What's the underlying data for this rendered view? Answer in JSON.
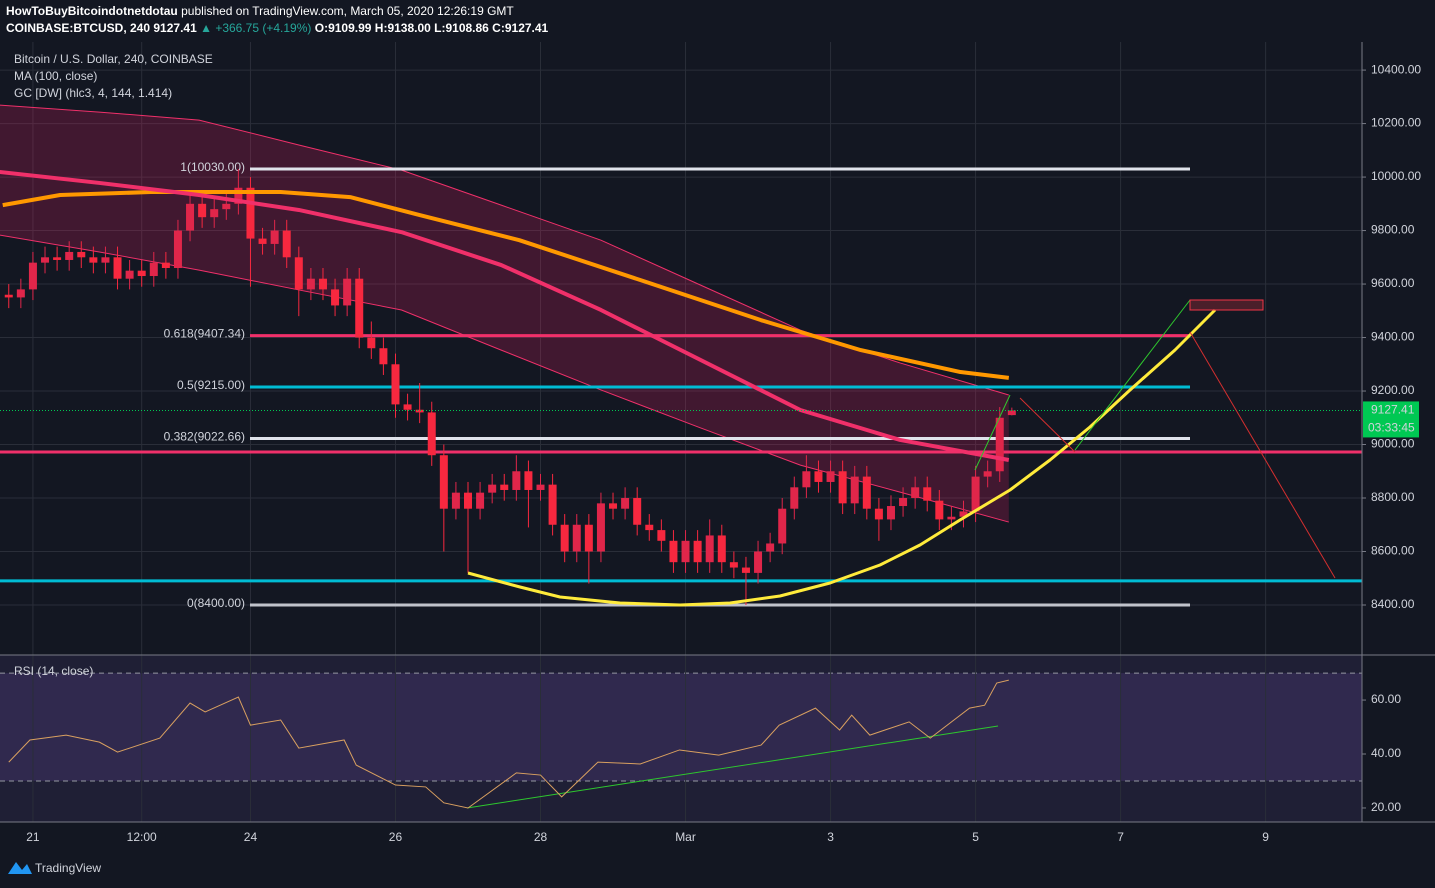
{
  "header": {
    "author": "HowToBuyBitcoindotnetdotau",
    "published": "published on TradingView.com, March 05, 2020 12:26:19 GMT",
    "symbol": "COINBASE:BTCUSD, 240",
    "last": "9127.41",
    "change": "▲ +366.75 (+4.19%)",
    "ohlc": "O:9109.99 H:9138.00 L:9108.86 C:9127.41"
  },
  "footer": {
    "brand": "TradingView"
  },
  "chart_data": [
    {
      "type": "candlestick",
      "title": "Bitcoin / U.S. Dollar, 240, COINBASE",
      "up_color": "#e0264a",
      "down_color": "#f7283f",
      "xlim": [
        -10.9,
        439.9
      ],
      "ylim": [
        8213,
        10505
      ],
      "yticks": [
        {
          "value": 8400,
          "label": "8400.00"
        },
        {
          "value": 8600,
          "label": "8600.00"
        },
        {
          "value": 8800,
          "label": "8800.00"
        },
        {
          "value": 9000,
          "label": "9000.00"
        },
        {
          "value": 9200,
          "label": "9200.00"
        },
        {
          "value": 9400,
          "label": "9400.00"
        },
        {
          "value": 9600,
          "label": "9600.00"
        },
        {
          "value": 9800,
          "label": "9800.00"
        },
        {
          "value": 10000,
          "label": "10000.00"
        },
        {
          "value": 10200,
          "label": "10200.00"
        },
        {
          "value": 10400,
          "label": "10400.00"
        }
      ],
      "x": [
        -8,
        -4,
        0,
        4,
        8,
        12,
        16,
        20,
        24,
        28,
        32,
        36,
        40,
        44,
        48,
        52,
        56,
        60,
        64,
        68,
        72,
        76,
        80,
        84,
        88,
        92,
        96,
        100,
        104,
        108,
        112,
        116,
        120,
        124,
        128,
        132,
        136,
        140,
        144,
        148,
        152,
        156,
        160,
        164,
        168,
        172,
        176,
        180,
        184,
        188,
        192,
        196,
        200,
        204,
        208,
        212,
        216,
        220,
        224,
        228,
        232,
        236,
        240,
        244,
        248,
        252,
        256,
        260,
        264,
        268,
        272,
        276,
        280,
        284,
        288,
        292,
        296,
        300,
        304,
        308,
        312,
        316,
        320,
        324
      ],
      "open": [
        9560,
        9550,
        9580,
        9680,
        9700,
        9690,
        9720,
        9700,
        9680,
        9700,
        9620,
        9650,
        9630,
        9680,
        9660,
        9800,
        9900,
        9850,
        9880,
        9900,
        9960,
        9770,
        9750,
        9800,
        9700,
        9580,
        9620,
        9580,
        9520,
        9620,
        9400,
        9360,
        9300,
        9150,
        9130,
        9120,
        8960,
        8760,
        8820,
        8760,
        8820,
        8850,
        8830,
        8900,
        8830,
        8850,
        8700,
        8600,
        8700,
        8600,
        8780,
        8760,
        8800,
        8700,
        8680,
        8640,
        8560,
        8640,
        8560,
        8660,
        8560,
        8540,
        8520,
        8600,
        8630,
        8760,
        8840,
        8900,
        8860,
        8900,
        8780,
        8880,
        8760,
        8720,
        8770,
        8800,
        8840,
        8790,
        8720,
        8730,
        8750,
        8880,
        8900,
        9109.99
      ],
      "high": [
        9600,
        9620,
        9720,
        9740,
        9740,
        9760,
        9760,
        9740,
        9740,
        9740,
        9690,
        9690,
        9720,
        9720,
        9840,
        9940,
        9940,
        9920,
        9940,
        10030,
        10000,
        9810,
        9840,
        9840,
        9740,
        9660,
        9660,
        9620,
        9660,
        9660,
        9460,
        9400,
        9340,
        9190,
        9230,
        9160,
        9000,
        8860,
        8860,
        8860,
        8890,
        8890,
        8960,
        8940,
        8890,
        8890,
        8740,
        8740,
        8740,
        8820,
        8820,
        8840,
        8840,
        8740,
        8720,
        8680,
        8680,
        8680,
        8720,
        8700,
        8600,
        8580,
        8640,
        8670,
        8800,
        8880,
        8960,
        8940,
        8940,
        8940,
        8920,
        8920,
        8800,
        8810,
        8840,
        8880,
        8880,
        8830,
        8770,
        8790,
        8920,
        8940,
        9140,
        9138
      ],
      "low": [
        9510,
        9510,
        9540,
        9640,
        9650,
        9650,
        9660,
        9640,
        9640,
        9580,
        9580,
        9590,
        9590,
        9620,
        9620,
        9760,
        9810,
        9810,
        9840,
        9860,
        9590,
        9710,
        9710,
        9660,
        9480,
        9540,
        9540,
        9480,
        9480,
        9360,
        9320,
        9260,
        9100,
        9090,
        9080,
        8920,
        8600,
        8720,
        8520,
        8720,
        8780,
        8790,
        8790,
        8690,
        8790,
        8660,
        8560,
        8560,
        8480,
        8560,
        8720,
        8720,
        8660,
        8640,
        8600,
        8520,
        8520,
        8520,
        8520,
        8520,
        8500,
        8400,
        8480,
        8560,
        8590,
        8720,
        8800,
        8820,
        8820,
        8740,
        8740,
        8720,
        8640,
        8680,
        8730,
        8760,
        8750,
        8680,
        8680,
        8690,
        8710,
        8840,
        8860,
        9108.86
      ],
      "close": [
        9550,
        9580,
        9680,
        9700,
        9690,
        9720,
        9700,
        9680,
        9700,
        9620,
        9650,
        9630,
        9680,
        9660,
        9800,
        9900,
        9850,
        9880,
        9900,
        9960,
        9770,
        9750,
        9800,
        9700,
        9580,
        9620,
        9580,
        9520,
        9620,
        9400,
        9360,
        9300,
        9150,
        9130,
        9120,
        8960,
        8760,
        8820,
        8760,
        8820,
        8850,
        8830,
        8900,
        8830,
        8850,
        8700,
        8600,
        8700,
        8600,
        8780,
        8760,
        8800,
        8700,
        8680,
        8640,
        8560,
        8640,
        8560,
        8660,
        8560,
        8540,
        8520,
        8600,
        8630,
        8760,
        8840,
        8900,
        8860,
        8900,
        8780,
        8880,
        8760,
        8720,
        8770,
        8800,
        8840,
        8790,
        8720,
        8730,
        8750,
        8880,
        8900,
        9100,
        9127.41
      ],
      "overlays": [
        {
          "name": "MA (100, close)",
          "color": "#ff9800",
          "x": [
            -10,
            9,
            39,
            82,
            105,
            128,
            161,
            201,
            241,
            274,
            307,
            323
          ],
          "values": [
            9895,
            9933,
            9944,
            9944,
            9925,
            9858,
            9764,
            9615,
            9465,
            9353,
            9271,
            9249
          ]
        },
        {
          "name": "GC [DW] (hlc3, 4, 144, 1.414)",
          "color": "#f0306a",
          "x": [
            -11,
            22,
            55,
            88,
            122,
            155,
            188,
            221,
            254,
            287,
            323
          ],
          "values": [
            10019,
            9978,
            9933,
            9877,
            9794,
            9671,
            9503,
            9316,
            9129,
            9017,
            8942
          ],
          "upper": [
            10269,
            10243,
            10213,
            10120,
            10026,
            9895,
            9764,
            9596,
            9428,
            9305,
            9185
          ],
          "lower": [
            9783,
            9720,
            9652,
            9578,
            9503,
            9353,
            9204,
            9062,
            8923,
            8822,
            8710
          ]
        }
      ],
      "levels": [
        {
          "label": "1(10030.00)",
          "value": 10030,
          "color": "#e0e3eb"
        },
        {
          "label": "0.618(9407.34)",
          "value": 9407.34,
          "color": "#f0306a"
        },
        {
          "label": "0.5(9215.00)",
          "value": 9215,
          "color": "#00bcd4"
        },
        {
          "label": "0.382(9022.66)",
          "value": 9022.66,
          "color": "#e0e3eb"
        },
        {
          "label": "0(8400.00)",
          "value": 8400,
          "color": "#c0c3cb"
        }
      ],
      "lines": [
        {
          "value": 8972,
          "color": "#f0306a"
        },
        {
          "value": 8490,
          "color": "#00bcd4"
        }
      ],
      "last_price": {
        "value": 9127.41,
        "countdown": "03:33:45",
        "color": "#00c853"
      }
    },
    {
      "type": "line",
      "title": "RSI (14, close)",
      "color": "#d9a060",
      "xlim": [
        -10.9,
        439.9
      ],
      "ylim": [
        14.8,
        76.7
      ],
      "xticks": [
        {
          "value": 0,
          "label": "21"
        },
        {
          "value": 36,
          "label": "12:00"
        },
        {
          "value": 72,
          "label": "24"
        },
        {
          "value": 120,
          "label": "26"
        },
        {
          "value": 168,
          "label": "28"
        },
        {
          "value": 216,
          "label": "Mar"
        },
        {
          "value": 264,
          "label": "3"
        },
        {
          "value": 312,
          "label": "5"
        },
        {
          "value": 360,
          "label": "7"
        },
        {
          "value": 408,
          "label": "9"
        }
      ],
      "yticks": [
        {
          "value": 20,
          "label": "20.00"
        },
        {
          "value": 40,
          "label": "40.00"
        },
        {
          "value": 60,
          "label": "60.00"
        }
      ],
      "bands": [
        70,
        30
      ],
      "x": [
        -8,
        -1,
        11,
        22,
        28,
        42,
        52,
        57,
        68,
        72,
        82,
        88,
        103,
        107,
        120,
        130,
        136,
        144,
        160,
        168,
        175,
        187,
        201,
        214,
        227,
        241,
        247,
        259,
        267,
        271,
        277,
        290,
        297,
        310,
        315,
        319,
        323
      ],
      "values": [
        37.0,
        45.2,
        47.0,
        44.4,
        40.7,
        45.9,
        58.9,
        55.6,
        61.1,
        50.7,
        52.6,
        42.2,
        45.2,
        35.9,
        28.5,
        27.8,
        21.9,
        20.0,
        33.0,
        32.2,
        24.1,
        37.0,
        36.3,
        41.5,
        39.6,
        43.3,
        50.7,
        57.0,
        48.9,
        54.4,
        47.0,
        51.9,
        45.9,
        57.0,
        58.1,
        66.3,
        67.4
      ]
    }
  ]
}
